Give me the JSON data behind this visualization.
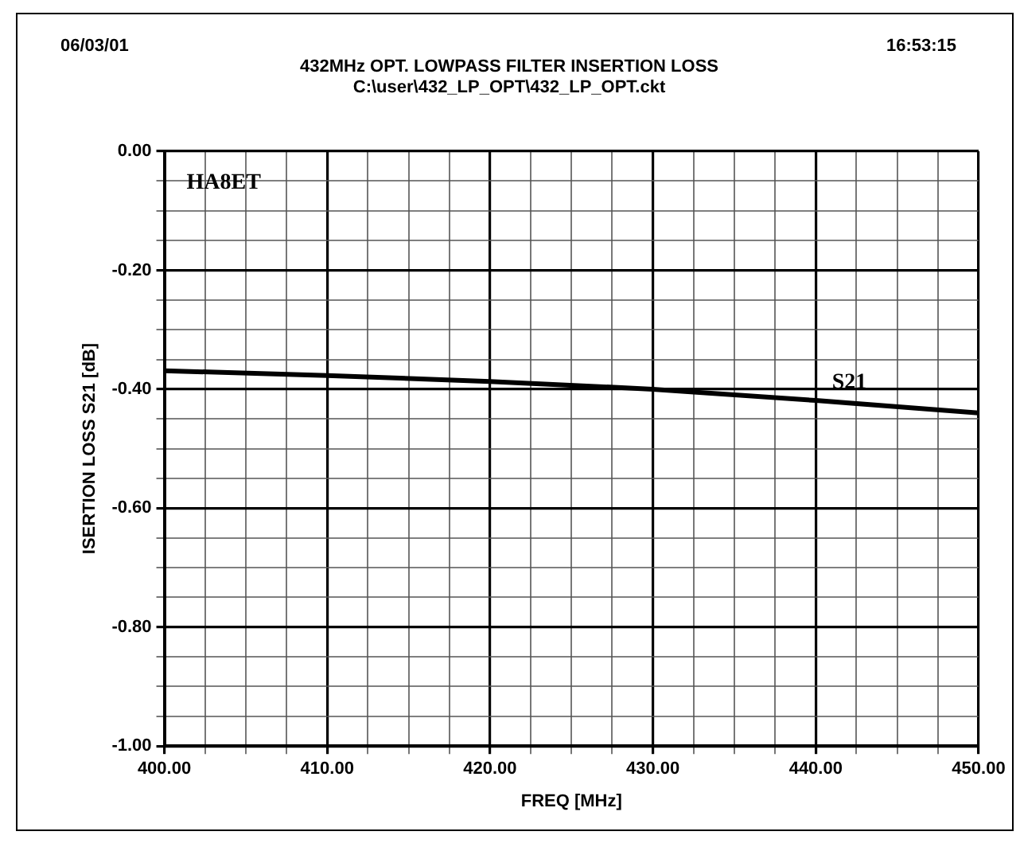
{
  "chart_data": {
    "type": "line",
    "title": "432MHz OPT. LOWPASS FILTER INSERTION LOSS",
    "subtitle": "C:\\user\\432_LP_OPT\\432_LP_OPT.ckt",
    "xlabel": "FREQ [MHz]",
    "ylabel": "ISERTION LOSS S21 [dB]",
    "annotations": [
      "06/03/01",
      "16:53:15",
      "HA8ET"
    ],
    "x": [
      400,
      410,
      420,
      430,
      440,
      450
    ],
    "series": [
      {
        "name": "S21",
        "color": "#000000",
        "values": [
          -0.369,
          -0.377,
          -0.387,
          -0.4,
          -0.419,
          -0.44
        ]
      }
    ],
    "xlim": [
      400,
      450
    ],
    "ylim": [
      -1,
      0
    ],
    "xticks": [
      {
        "value": 400,
        "label": "400.00"
      },
      {
        "value": 402.5,
        "label": null
      },
      {
        "value": 405,
        "label": null
      },
      {
        "value": 407.5,
        "label": null
      },
      {
        "value": 410,
        "label": "410.00"
      },
      {
        "value": 412.5,
        "label": null
      },
      {
        "value": 415,
        "label": null
      },
      {
        "value": 417.5,
        "label": null
      },
      {
        "value": 420,
        "label": "420.00"
      },
      {
        "value": 422.5,
        "label": null
      },
      {
        "value": 425,
        "label": null
      },
      {
        "value": 427.5,
        "label": null
      },
      {
        "value": 430,
        "label": "430.00"
      },
      {
        "value": 432.5,
        "label": null
      },
      {
        "value": 435,
        "label": null
      },
      {
        "value": 437.5,
        "label": null
      },
      {
        "value": 440,
        "label": "440.00"
      },
      {
        "value": 442.5,
        "label": null
      },
      {
        "value": 445,
        "label": null
      },
      {
        "value": 447.5,
        "label": null
      },
      {
        "value": 450,
        "label": "450.00"
      }
    ],
    "yticks": [
      {
        "value": -1,
        "label": "-1.00"
      },
      {
        "value": -0.95,
        "label": null
      },
      {
        "value": -0.9,
        "label": null
      },
      {
        "value": -0.85,
        "label": null
      },
      {
        "value": -0.8,
        "label": "-0.80"
      },
      {
        "value": -0.75,
        "label": null
      },
      {
        "value": -0.7,
        "label": null
      },
      {
        "value": -0.65,
        "label": null
      },
      {
        "value": -0.6,
        "label": "-0.60"
      },
      {
        "value": -0.55,
        "label": null
      },
      {
        "value": -0.5,
        "label": null
      },
      {
        "value": -0.45,
        "label": null
      },
      {
        "value": -0.4,
        "label": "-0.40"
      },
      {
        "value": -0.35,
        "label": null
      },
      {
        "value": -0.3,
        "label": null
      },
      {
        "value": -0.25,
        "label": null
      },
      {
        "value": -0.2,
        "label": "-0.20"
      },
      {
        "value": -0.15,
        "label": null
      },
      {
        "value": -0.1,
        "label": null
      },
      {
        "value": -0.05,
        "label": null
      },
      {
        "value": 0,
        "label": "0.00"
      }
    ],
    "grid": true,
    "legend": false,
    "line_style": "solid",
    "marker": "none"
  }
}
